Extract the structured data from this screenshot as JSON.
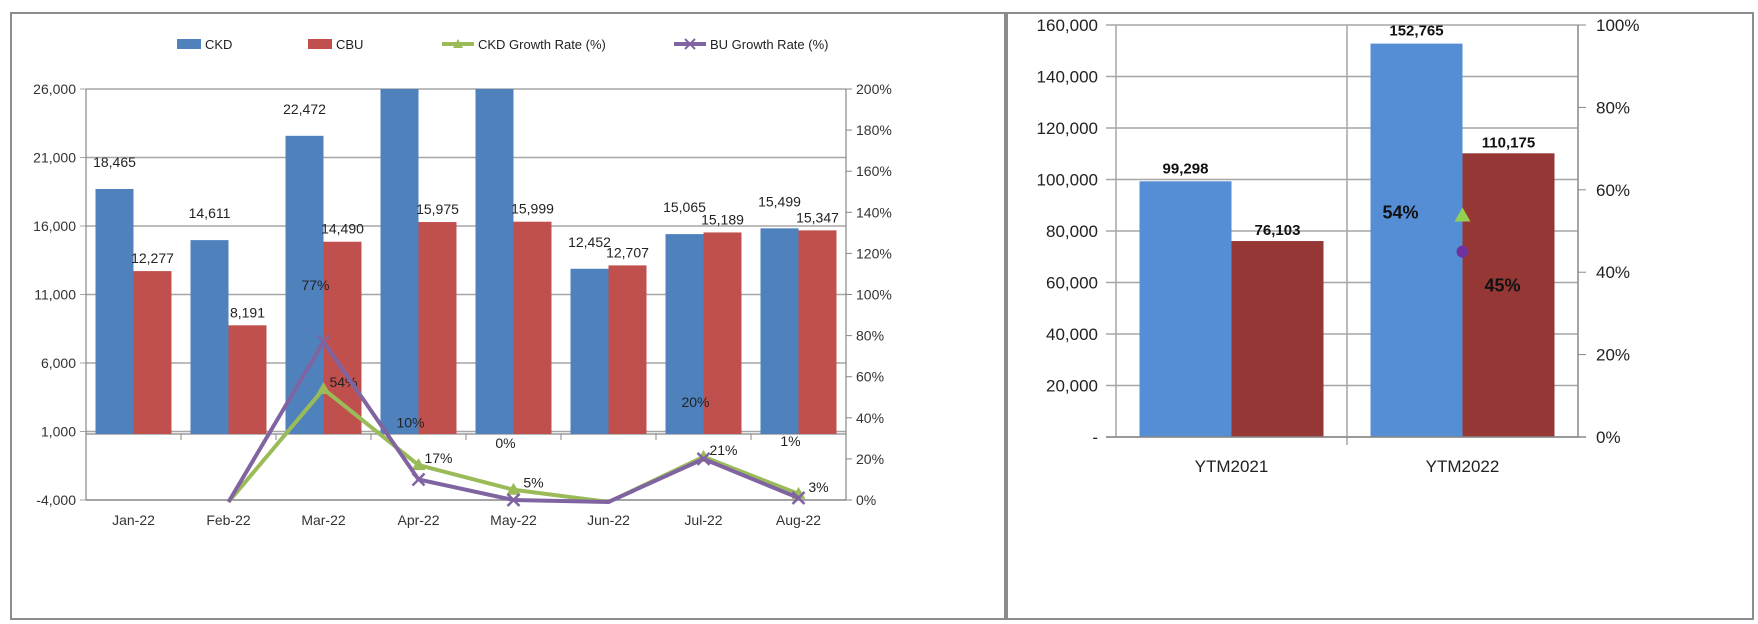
{
  "colors": {
    "ckd": "#4f81bd",
    "cbu": "#c0504d",
    "ckd_growth": "#9bbb59",
    "cbu_growth": "#8064a2",
    "ytm_ckd": "#558ed5",
    "ytm_cbu": "#953735",
    "ytm_ckd_marker": "#92d050",
    "ytm_cbu_marker": "#7030a0",
    "grid": "#a6a6a6"
  },
  "chart_data": [
    {
      "type": "bar",
      "title": "",
      "legend_position": "top",
      "legend": [
        {
          "label": "CKD",
          "kind": "bar",
          "icon": "bar-swatch"
        },
        {
          "label": "CBU",
          "kind": "bar",
          "icon": "bar-swatch"
        },
        {
          "label": "CKD Growth Rate (%)",
          "kind": "line",
          "icon": "triangle-marker"
        },
        {
          "label": "BU Growth Rate (%)",
          "kind": "line",
          "icon": "x-marker"
        }
      ],
      "categories": [
        "Jan-22",
        "Feb-22",
        "Mar-22",
        "Apr-22",
        "May-22",
        "Jun-22",
        "Jul-22",
        "Aug-22"
      ],
      "series": [
        {
          "name": "CKD",
          "type": "bar",
          "axis": "left",
          "values": [
            18465,
            14611,
            22472,
            26000,
            26000,
            12452,
            15065,
            15499
          ],
          "labels": [
            "18,465",
            "14,611",
            "22,472",
            "",
            "",
            "12,452",
            "15,065",
            "15,499"
          ]
        },
        {
          "name": "CBU",
          "type": "bar",
          "axis": "left",
          "values": [
            12277,
            8191,
            14490,
            15975,
            15999,
            12707,
            15189,
            15347
          ],
          "labels": [
            "12,277",
            "8,191",
            "14,490",
            "15,975",
            "15,999",
            "12,707",
            "15,189",
            "15,347"
          ]
        },
        {
          "name": "CKD Growth Rate (%)",
          "type": "line",
          "axis": "right",
          "values": [
            null,
            -40,
            54,
            17,
            5,
            -40,
            21,
            3
          ],
          "labels": [
            "",
            "",
            "54%",
            "17%",
            "5%",
            "",
            "21%",
            "3%"
          ]
        },
        {
          "name": "BU Growth Rate (%)",
          "type": "line",
          "axis": "right",
          "values": [
            null,
            -40,
            77,
            10,
            0,
            -40,
            20,
            1
          ],
          "labels": [
            "",
            "",
            "77%",
            "10%",
            "0%",
            "",
            "20%",
            "1%"
          ]
        }
      ],
      "y_left": {
        "min": -4000,
        "max": 26000,
        "ticks": [
          "26,000",
          "21,000",
          "16,000",
          "11,000",
          "6,000",
          "1,000",
          "-4,000"
        ]
      },
      "y_right": {
        "min": 0,
        "max": 200,
        "ticks": [
          "200%",
          "180%",
          "160%",
          "140%",
          "120%",
          "100%",
          "80%",
          "60%",
          "40%",
          "20%",
          "0%"
        ]
      },
      "grid": true
    },
    {
      "type": "bar",
      "title": "",
      "categories": [
        "YTM2021",
        "YTM2022"
      ],
      "series": [
        {
          "name": "CKD",
          "type": "bar",
          "axis": "left",
          "values": [
            99298,
            152765
          ],
          "labels": [
            "99,298",
            "152,765"
          ]
        },
        {
          "name": "CBU",
          "type": "bar",
          "axis": "left",
          "values": [
            76103,
            110175
          ],
          "labels": [
            "76,103",
            "110,175"
          ]
        },
        {
          "name": "CKD Growth Rate (%)",
          "type": "marker",
          "axis": "right",
          "values": [
            null,
            54
          ],
          "labels": [
            "",
            "54%"
          ]
        },
        {
          "name": "CBU Growth Rate (%)",
          "type": "marker",
          "axis": "right",
          "values": [
            null,
            45
          ],
          "labels": [
            "",
            "45%"
          ]
        }
      ],
      "y_left": {
        "min": 0,
        "max": 160000,
        "ticks": [
          "160,000",
          "140,000",
          "120,000",
          "100,000",
          "80,000",
          "60,000",
          "40,000",
          "20,000",
          "-"
        ]
      },
      "y_right": {
        "min": 0,
        "max": 100,
        "ticks": [
          "100%",
          "80%",
          "60%",
          "40%",
          "20%",
          "0%"
        ]
      },
      "grid": true
    }
  ]
}
